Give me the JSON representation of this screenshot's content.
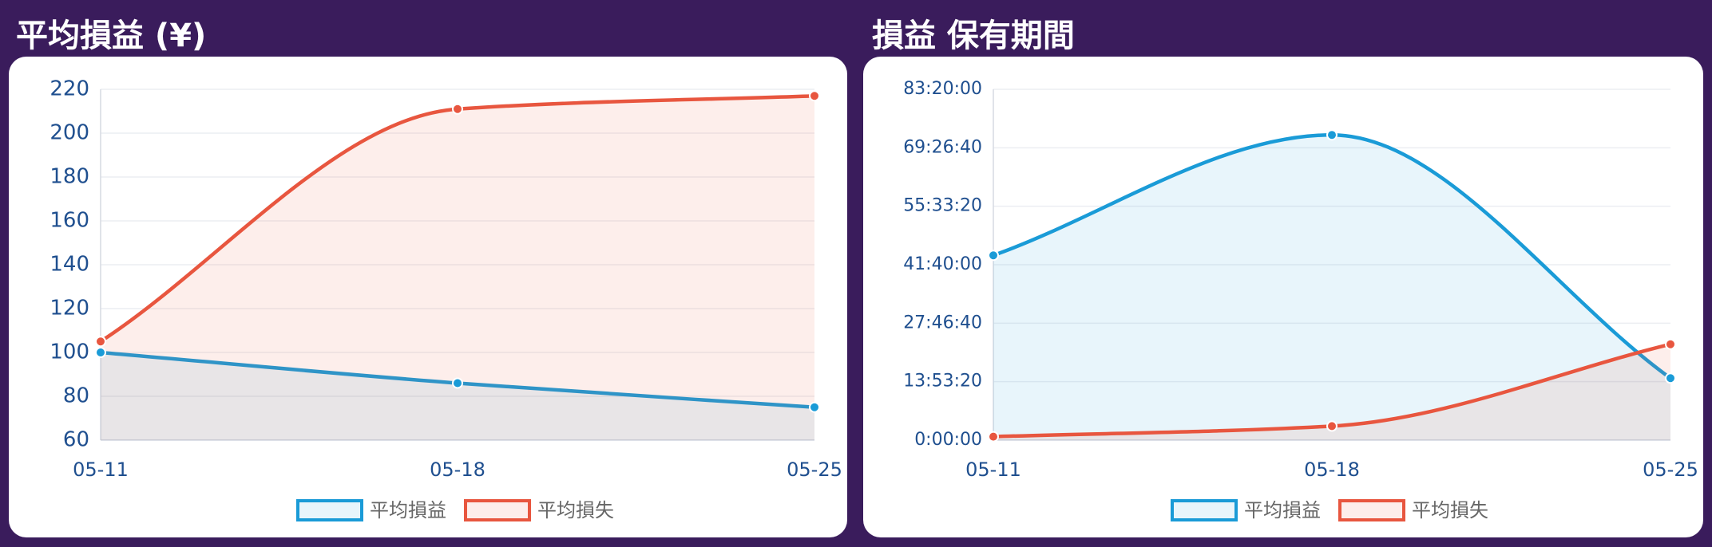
{
  "chart_data": [
    {
      "type": "line",
      "title": "平均損益 (¥)",
      "categories": [
        "05-11",
        "05-18",
        "05-25"
      ],
      "series": [
        {
          "name": "平均損益",
          "color": "#1a9bd7",
          "values": [
            100,
            86,
            75
          ]
        },
        {
          "name": "平均損失",
          "color": "#e8563f",
          "values": [
            105,
            211,
            217
          ]
        }
      ],
      "ylim": [
        60,
        220
      ],
      "yticks": [
        60,
        80,
        100,
        120,
        140,
        160,
        180,
        200,
        220
      ],
      "grid": true,
      "legend": "bottom"
    },
    {
      "type": "line",
      "title": "損益 保有期間",
      "categories": [
        "05-11",
        "05-18",
        "05-25"
      ],
      "series": [
        {
          "name": "平均損益",
          "color": "#1a9bd7",
          "values": [
            158000,
            261000,
            53000
          ]
        },
        {
          "name": "平均損失",
          "color": "#e8563f",
          "values": [
            3000,
            12000,
            82000
          ]
        }
      ],
      "ylim": [
        0,
        300000
      ],
      "yticks": [
        {
          "value": 0,
          "label": "0:00:00"
        },
        {
          "value": 50000,
          "label": "13:53:20"
        },
        {
          "value": 100000,
          "label": "27:46:40"
        },
        {
          "value": 150000,
          "label": "41:40:00"
        },
        {
          "value": 200000,
          "label": "55:33:20"
        },
        {
          "value": 250000,
          "label": "69:26:40"
        },
        {
          "value": 300000,
          "label": "83:20:00"
        }
      ],
      "grid": true,
      "legend": "bottom"
    }
  ]
}
